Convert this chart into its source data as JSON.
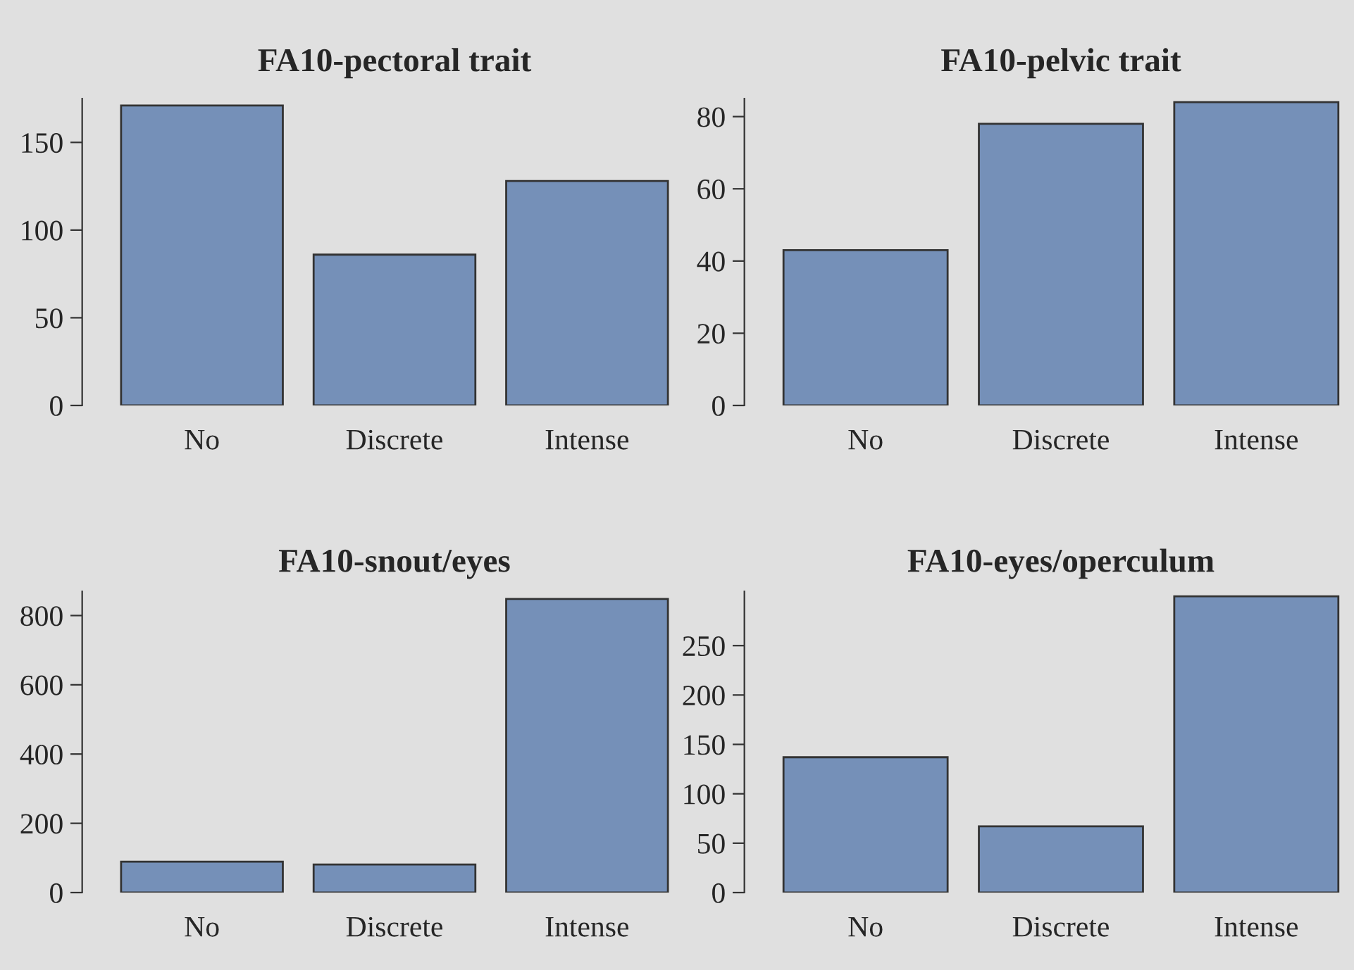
{
  "chart_data": [
    {
      "type": "bar",
      "title": "FA10-pectoral trait",
      "categories": [
        "No",
        "Discrete",
        "Intense"
      ],
      "values": [
        171,
        86,
        128
      ],
      "color": "#7590b8",
      "ylim": [
        0,
        175
      ],
      "yticks": [
        0,
        50,
        100,
        150
      ],
      "grid": false
    },
    {
      "type": "bar",
      "title": "FA10-pelvic trait",
      "categories": [
        "No",
        "Discrete",
        "Intense"
      ],
      "values": [
        43,
        78,
        84
      ],
      "color": "#7590b8",
      "ylim": [
        0,
        85
      ],
      "yticks": [
        0,
        20,
        40,
        60,
        80
      ],
      "grid": false
    },
    {
      "type": "bar",
      "title": "FA10-snout/eyes",
      "categories": [
        "No",
        "Discrete",
        "Intense"
      ],
      "values": [
        89,
        81,
        848
      ],
      "color": "#7590b8",
      "ylim": [
        0,
        870
      ],
      "yticks": [
        0,
        200,
        400,
        600,
        800
      ],
      "grid": false
    },
    {
      "type": "bar",
      "title": "FA10-eyes/operculum",
      "categories": [
        "No",
        "Discrete",
        "Intense"
      ],
      "values": [
        137,
        67,
        300
      ],
      "color": "#7590b8",
      "ylim": [
        0,
        305
      ],
      "yticks": [
        0,
        50,
        100,
        150,
        200,
        250
      ],
      "grid": false
    }
  ]
}
